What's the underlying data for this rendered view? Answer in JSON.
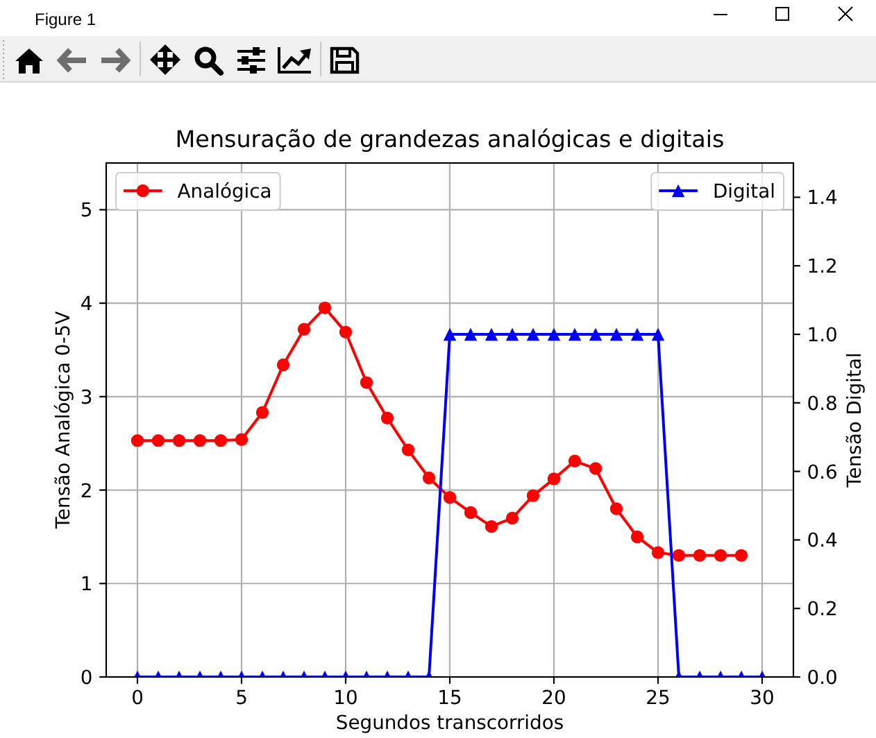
{
  "chart_data": {
    "type": "line",
    "title": "Mensuração de grandezas analógicas e digitais",
    "xlabel": "Segundos transcorridos",
    "ylabel": "Tensão Analógica 0-5V",
    "y2label": "Tensão Digital",
    "annotations": [
      "Figure 1"
    ],
    "series": [
      {
        "name": "Analógica",
        "color": "#ff0000",
        "marker": "circle",
        "x": [
          0,
          1,
          2,
          3,
          4,
          5,
          6,
          7,
          8,
          9,
          10,
          11,
          12,
          13,
          14,
          15,
          16,
          17,
          18,
          19,
          20,
          21,
          22,
          23,
          24,
          25,
          26,
          27,
          28,
          29
        ],
        "values": [
          2.53,
          2.53,
          2.53,
          2.53,
          2.53,
          2.54,
          2.83,
          3.34,
          3.72,
          3.95,
          3.69,
          3.15,
          2.77,
          2.43,
          2.13,
          1.92,
          1.76,
          1.61,
          1.7,
          1.94,
          2.12,
          2.31,
          2.23,
          1.8,
          1.5,
          1.33,
          1.3,
          1.3,
          1.3,
          1.3
        ]
      },
      {
        "name": "Digital",
        "color": "#0000ff",
        "marker": "triangle",
        "axis": "y2",
        "x": [
          0,
          1,
          2,
          3,
          4,
          5,
          6,
          7,
          8,
          9,
          10,
          11,
          12,
          13,
          14,
          15,
          16,
          17,
          18,
          19,
          20,
          21,
          22,
          23,
          24,
          25,
          26,
          27,
          28,
          29,
          30
        ],
        "values": [
          0,
          0,
          0,
          0,
          0,
          0,
          0,
          0,
          0,
          0,
          0,
          0,
          0,
          0,
          0,
          1,
          1,
          1,
          1,
          1,
          1,
          1,
          1,
          1,
          1,
          1,
          0,
          0,
          0,
          0,
          0
        ]
      }
    ],
    "xlim": [
      -1.5,
      31.5
    ],
    "xticks": [
      0,
      5,
      10,
      15,
      20,
      25,
      30
    ],
    "ylim": [
      0,
      5.5
    ],
    "yticks": [
      0,
      1,
      2,
      3,
      4,
      5
    ],
    "y2lim": [
      0,
      1.5
    ],
    "y2ticks": [
      {
        "value": 0,
        "label": "0.0"
      },
      0.2,
      0.4,
      0.6,
      0.8,
      {
        "value": 1,
        "label": "1.0"
      },
      1.2,
      1.4
    ],
    "grid": true,
    "legend": "top",
    "line_style": "solid"
  }
}
